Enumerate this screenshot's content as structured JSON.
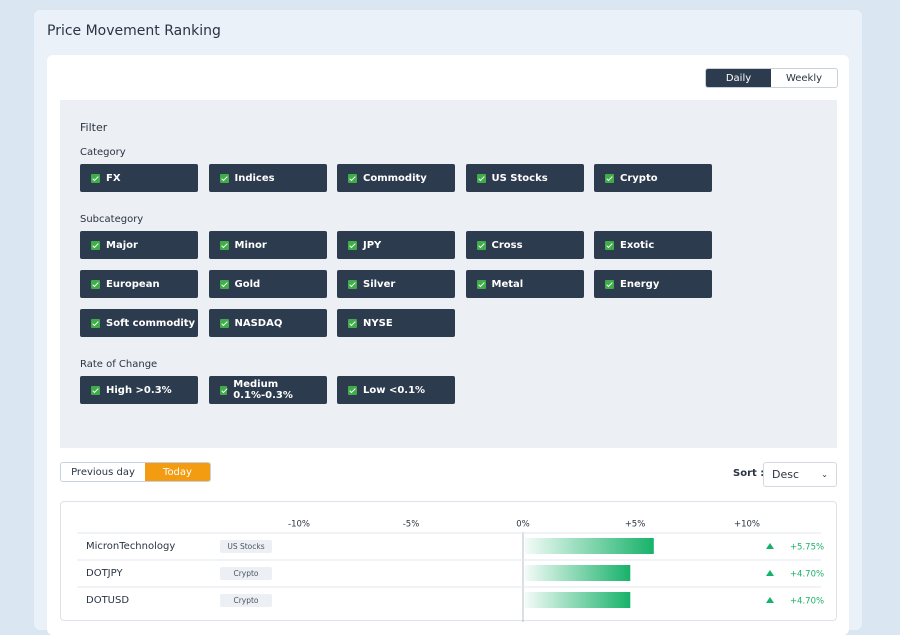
{
  "header": {
    "title": "Price Movement Ranking"
  },
  "period_toggle": {
    "options": [
      "Daily",
      "Weekly"
    ],
    "selected": 0
  },
  "filter": {
    "title": "Filter",
    "groups": [
      {
        "label": "Category",
        "options": [
          "FX",
          "Indices",
          "Commodity",
          "US Stocks",
          "Crypto"
        ]
      },
      {
        "label": "Subcategory",
        "options": [
          "Major",
          "Minor",
          "JPY",
          "Cross",
          "Exotic",
          "European",
          "Gold",
          "Silver",
          "Metal",
          "Energy",
          "Soft commodity",
          "NASDAQ",
          "NYSE"
        ]
      },
      {
        "label": "Rate of Change",
        "options": [
          "High >0.3%",
          "Medium 0.1%-0.3%",
          "Low <0.1%"
        ]
      }
    ]
  },
  "day_toggle": {
    "options": [
      "Previous day",
      "Today"
    ],
    "selected": 1
  },
  "sort": {
    "label": "Sort :",
    "value": "Desc"
  },
  "ranking": {
    "xlim": [
      -10,
      10
    ],
    "xticks": [
      {
        "value": -10,
        "label": "-10%"
      },
      {
        "value": -5,
        "label": "-5%"
      },
      {
        "value": 0,
        "label": "0%"
      },
      {
        "value": 5,
        "label": "+5%"
      },
      {
        "value": 10,
        "label": "+10%"
      }
    ],
    "color": "#17b26a",
    "names": [
      "MicronTechnology",
      "DOTJPY",
      "DOTUSD"
    ],
    "tags": [
      "US Stocks",
      "Crypto",
      "Crypto"
    ],
    "values": [
      5.75,
      4.7,
      4.7
    ],
    "value_labels": [
      "+5.75%",
      "+4.70%",
      "+4.70%"
    ]
  }
}
